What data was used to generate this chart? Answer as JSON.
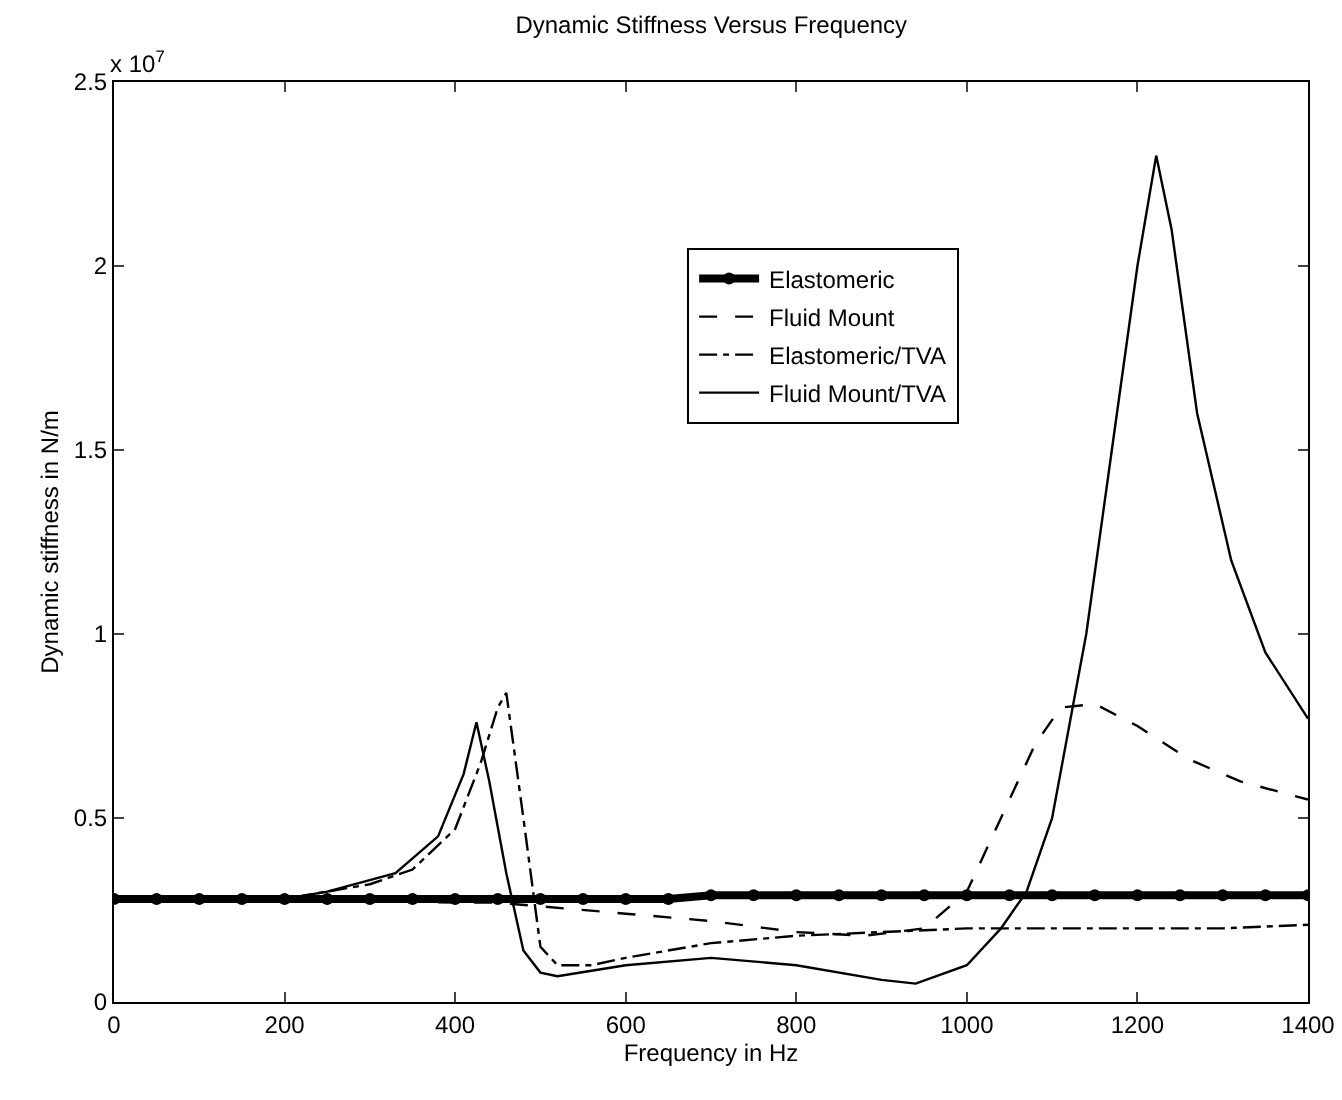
{
  "chart_data": {
    "type": "line",
    "title": "Dynamic Stiffness Versus Frequency",
    "xlabel": "Frequency in Hz",
    "ylabel": "Dynamic stiffness in N/m",
    "annotations": [
      "x 10$^{7}$"
    ],
    "xlim": [
      0,
      1400
    ],
    "xticks": [
      0,
      200,
      400,
      600,
      800,
      1000,
      1200,
      1400
    ],
    "ylim": [
      0,
      2.5
    ],
    "yticks": [
      0,
      0.5,
      1,
      1.5,
      2,
      2.5
    ],
    "grid": false,
    "legend": "top",
    "series": [
      {
        "name": "Elastomeric",
        "color": "#000000",
        "marker": "circle",
        "line_style": "solid",
        "x": [
          0,
          50,
          100,
          150,
          200,
          250,
          300,
          350,
          400,
          450,
          500,
          550,
          600,
          650,
          700,
          750,
          800,
          850,
          900,
          950,
          1000,
          1050,
          1100,
          1150,
          1200,
          1250,
          1300,
          1350,
          1400
        ],
        "values": [
          0.28,
          0.28,
          0.28,
          0.28,
          0.28,
          0.28,
          0.28,
          0.28,
          0.28,
          0.28,
          0.28,
          0.28,
          0.28,
          0.28,
          0.29,
          0.29,
          0.29,
          0.29,
          0.29,
          0.29,
          0.29,
          0.29,
          0.29,
          0.29,
          0.29,
          0.29,
          0.29,
          0.29,
          0.29
        ]
      },
      {
        "name": "Fluid Mount",
        "color": "#000000",
        "marker": "none",
        "line_style": "dotted",
        "x": [
          0,
          200,
          400,
          450,
          500,
          600,
          700,
          800,
          880,
          950,
          1000,
          1040,
          1080,
          1110,
          1150,
          1200,
          1260,
          1320,
          1400
        ],
        "values": [
          0.28,
          0.28,
          0.27,
          0.27,
          0.26,
          0.24,
          0.22,
          0.19,
          0.18,
          0.2,
          0.3,
          0.5,
          0.7,
          0.8,
          0.81,
          0.75,
          0.66,
          0.6,
          0.55
        ]
      },
      {
        "name": "Elastomeric/TVA",
        "color": "#000000",
        "marker": "none",
        "line_style": "dashed",
        "x": [
          0,
          200,
          250,
          300,
          350,
          400,
          430,
          450,
          460,
          480,
          500,
          520,
          560,
          600,
          700,
          800,
          900,
          1000,
          1100,
          1200,
          1300,
          1400
        ],
        "values": [
          0.28,
          0.28,
          0.3,
          0.32,
          0.36,
          0.47,
          0.65,
          0.8,
          0.84,
          0.5,
          0.15,
          0.1,
          0.1,
          0.12,
          0.16,
          0.18,
          0.19,
          0.2,
          0.2,
          0.2,
          0.2,
          0.21
        ]
      },
      {
        "name": "Fluid Mount/TVA",
        "color": "#000000",
        "marker": "none",
        "line_style": "solid",
        "x": [
          0,
          200,
          250,
          330,
          380,
          410,
          425,
          440,
          460,
          480,
          500,
          520,
          600,
          700,
          800,
          900,
          940,
          1000,
          1040,
          1070,
          1100,
          1140,
          1170,
          1200,
          1222,
          1240,
          1270,
          1310,
          1350,
          1400
        ],
        "values": [
          0.28,
          0.28,
          0.3,
          0.35,
          0.45,
          0.62,
          0.76,
          0.6,
          0.35,
          0.14,
          0.08,
          0.07,
          0.1,
          0.12,
          0.1,
          0.06,
          0.05,
          0.1,
          0.2,
          0.3,
          0.5,
          1.0,
          1.5,
          2.0,
          2.3,
          2.1,
          1.6,
          1.2,
          0.95,
          0.77
        ]
      }
    ]
  }
}
